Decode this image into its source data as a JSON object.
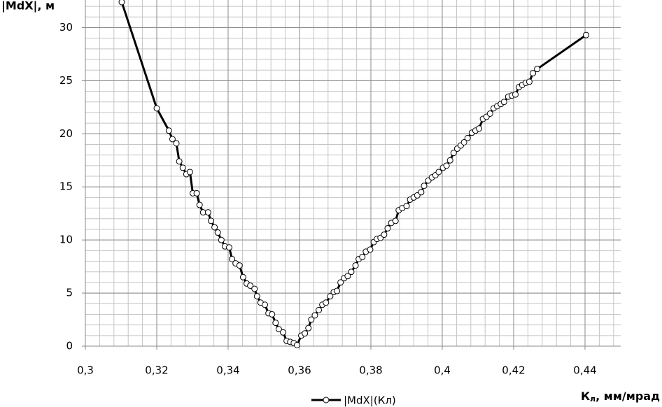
{
  "chart_data": {
    "type": "line",
    "y_label": "|MdX|, м",
    "x_label": "Кл, мм/мрад",
    "xlim": [
      0.3,
      0.45
    ],
    "ylim": [
      0,
      32.6
    ],
    "xticks": [
      {
        "value": 0.3,
        "label": "0,3"
      },
      {
        "value": 0.32,
        "label": "0,32"
      },
      {
        "value": 0.34,
        "label": "0,34"
      },
      {
        "value": 0.36,
        "label": "0,36"
      },
      {
        "value": 0.38,
        "label": "0,38"
      },
      {
        "value": 0.4,
        "label": "0,4"
      },
      {
        "value": 0.42,
        "label": "0,42"
      },
      {
        "value": 0.44,
        "label": "0,44"
      }
    ],
    "yticks": [
      0,
      5,
      10,
      15,
      20,
      25,
      30
    ],
    "grid": true,
    "minor_grid": true,
    "legend": "bottom",
    "series": [
      {
        "name": "|MdX|(Кл)",
        "color": "#000000",
        "x": [
          0.3102,
          0.32,
          0.3234,
          0.3244,
          0.3255,
          0.3263,
          0.3273,
          0.3283,
          0.3293,
          0.3301,
          0.3312,
          0.332,
          0.333,
          0.3344,
          0.3352,
          0.3362,
          0.3371,
          0.3381,
          0.3391,
          0.3403,
          0.3411,
          0.3421,
          0.3432,
          0.3442,
          0.3452,
          0.3462,
          0.3474,
          0.3481,
          0.3491,
          0.3503,
          0.3513,
          0.3523,
          0.3533,
          0.3542,
          0.3554,
          0.3564,
          0.3574,
          0.3584,
          0.3593,
          0.3605,
          0.3615,
          0.3625,
          0.3633,
          0.3643,
          0.3654,
          0.3664,
          0.3674,
          0.3686,
          0.3696,
          0.3705,
          0.3715,
          0.3725,
          0.3735,
          0.3745,
          0.3757,
          0.3766,
          0.3776,
          0.3786,
          0.3798,
          0.3808,
          0.3817,
          0.3827,
          0.3837,
          0.3847,
          0.3857,
          0.3869,
          0.3878,
          0.3888,
          0.39,
          0.391,
          0.392,
          0.393,
          0.3941,
          0.3949,
          0.3961,
          0.3971,
          0.3981,
          0.399,
          0.4002,
          0.4012,
          0.4022,
          0.4032,
          0.4042,
          0.4052,
          0.4061,
          0.4071,
          0.4083,
          0.4093,
          0.4103,
          0.4114,
          0.4124,
          0.4134,
          0.4144,
          0.4154,
          0.4164,
          0.4173,
          0.4185,
          0.4195,
          0.4205,
          0.4215,
          0.4224,
          0.4234,
          0.4244,
          0.4254,
          0.4266,
          0.4403
        ],
        "values": [
          32.4,
          22.4,
          20.3,
          19.5,
          19.1,
          17.4,
          16.8,
          16.2,
          16.4,
          14.4,
          14.4,
          13.3,
          12.6,
          12.6,
          11.8,
          11.2,
          10.7,
          10.0,
          9.4,
          9.3,
          8.2,
          7.8,
          7.6,
          6.5,
          5.9,
          5.7,
          5.4,
          4.7,
          4.1,
          3.9,
          3.1,
          3.0,
          2.2,
          1.6,
          1.3,
          0.5,
          0.4,
          0.3,
          0.1,
          1.0,
          1.2,
          1.7,
          2.5,
          2.9,
          3.4,
          3.9,
          4.1,
          4.7,
          5.1,
          5.2,
          6.0,
          6.4,
          6.6,
          7.0,
          7.6,
          8.2,
          8.4,
          8.9,
          9.1,
          9.8,
          10.1,
          10.2,
          10.5,
          11.1,
          11.6,
          11.8,
          12.8,
          13.0,
          13.2,
          13.8,
          14.0,
          14.2,
          14.5,
          15.1,
          15.6,
          15.9,
          16.1,
          16.4,
          16.8,
          17.0,
          17.5,
          18.2,
          18.6,
          18.9,
          19.2,
          19.6,
          20.1,
          20.3,
          20.5,
          21.4,
          21.6,
          21.9,
          22.4,
          22.6,
          22.8,
          23.0,
          23.5,
          23.6,
          23.7,
          24.4,
          24.6,
          24.8,
          24.9,
          25.7,
          26.1,
          29.3
        ]
      }
    ]
  }
}
